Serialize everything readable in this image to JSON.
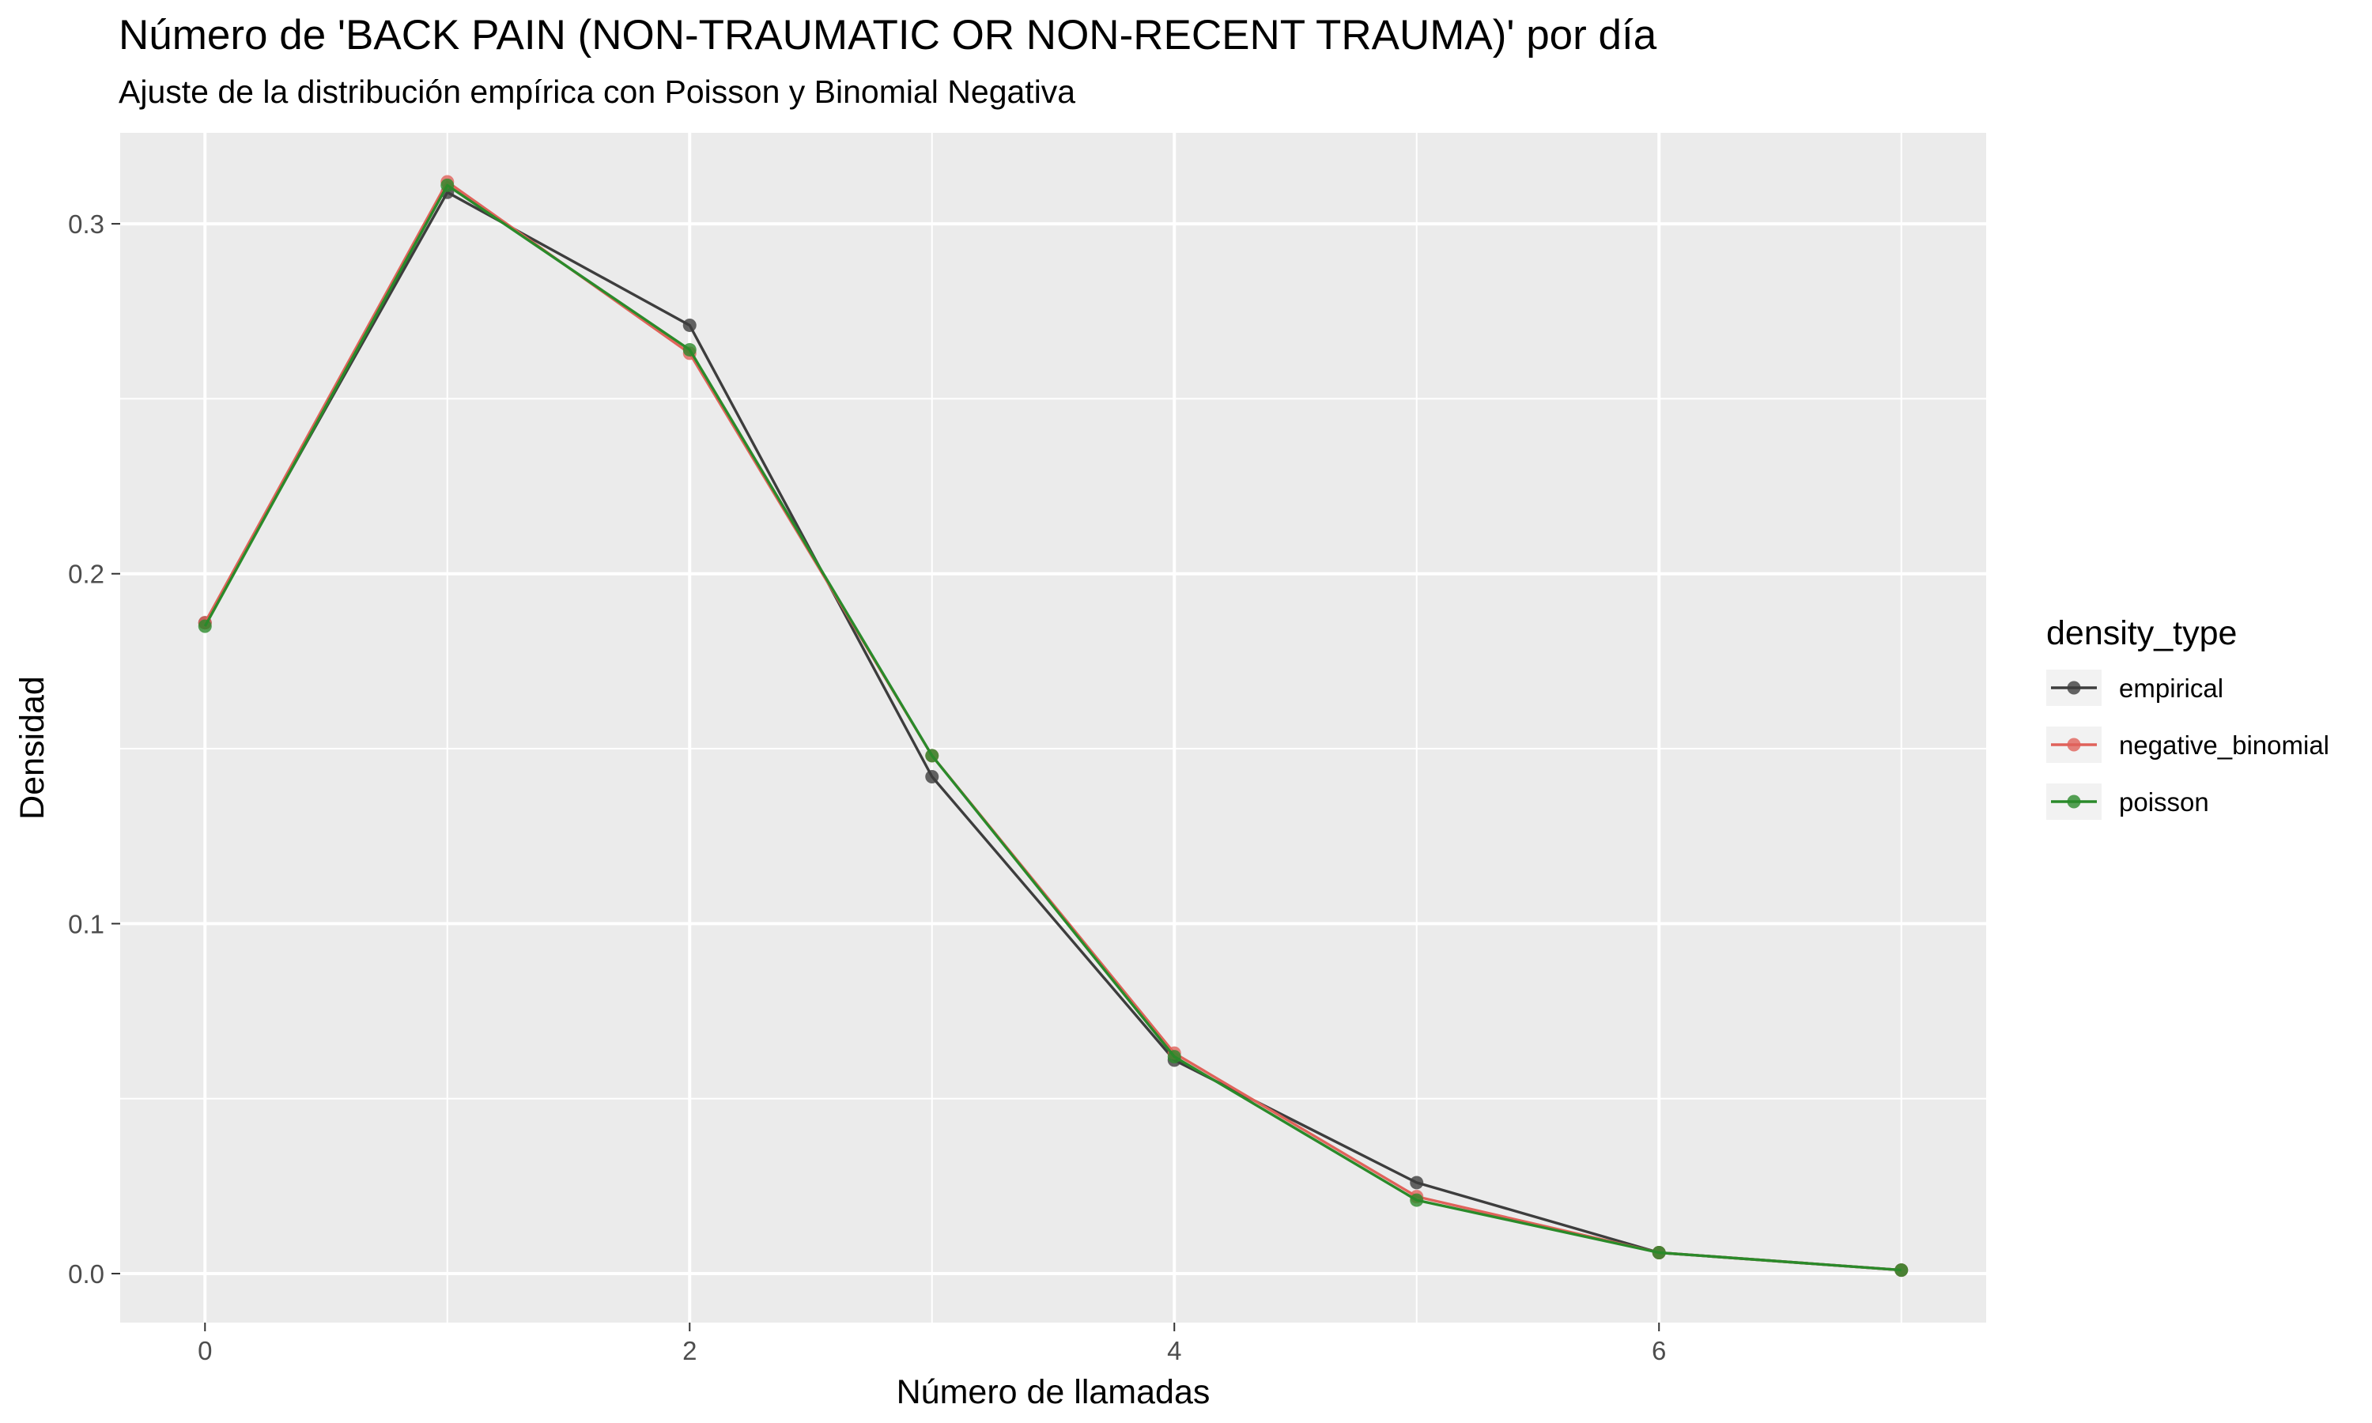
{
  "chart_data": {
    "type": "line",
    "title": "Número de 'BACK PAIN (NON-TRAUMATIC OR NON-RECENT TRAUMA)' por día",
    "subtitle": "Ajuste de la distribución empírica con Poisson y Binomial Negativa",
    "xlabel": "Número de llamadas",
    "ylabel": "Densidad",
    "xlim": [
      -0.35,
      7.35
    ],
    "ylim": [
      -0.014,
      0.326
    ],
    "xticks": [
      0,
      2,
      4,
      6
    ],
    "xtick_labels": [
      "0",
      "2",
      "4",
      "6"
    ],
    "yticks": [
      0.0,
      0.1,
      0.2,
      0.3
    ],
    "ytick_labels": [
      "0.0",
      "0.1",
      "0.2",
      "0.3"
    ],
    "grid": true,
    "legend": {
      "title": "density_type",
      "position": "right"
    },
    "x": [
      0,
      1,
      2,
      3,
      4,
      5,
      6,
      7
    ],
    "series": [
      {
        "name": "empirical",
        "color": "#3d3d3d",
        "values": [
          0.186,
          0.309,
          0.271,
          0.142,
          0.061,
          0.026,
          0.006,
          0.001
        ]
      },
      {
        "name": "negative_binomial",
        "color": "#e0625a",
        "values": [
          0.186,
          0.312,
          0.263,
          0.148,
          0.063,
          0.022,
          0.006,
          0.001
        ]
      },
      {
        "name": "poisson",
        "color": "#2a8a2a",
        "values": [
          0.185,
          0.311,
          0.264,
          0.148,
          0.062,
          0.021,
          0.006,
          0.001
        ]
      }
    ],
    "colors": {
      "panel": "#ebebeb",
      "grid": "#ffffff"
    }
  }
}
